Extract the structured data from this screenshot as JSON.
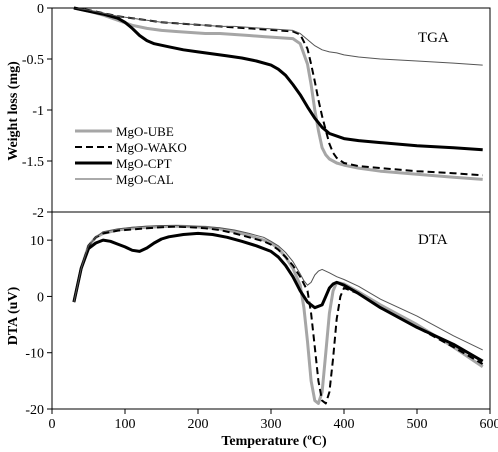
{
  "chart_data": [
    {
      "type": "line",
      "panel_label": "TGA",
      "xlabel": "",
      "ylabel": "Weight loss (mg)",
      "xlim": [
        0,
        600
      ],
      "ylim": [
        -2,
        0
      ],
      "yticks": [
        0,
        -0.5,
        -1,
        -1.5,
        -2
      ],
      "ytick_labels": [
        "0",
        "-0.5",
        "-1",
        "-1.5",
        "-2"
      ],
      "grid": false,
      "legend": "center-left",
      "series": [
        {
          "name": "MgO-UBE",
          "color": "#a6a6a6",
          "width": 3,
          "dash": "",
          "x": [
            30,
            50,
            70,
            90,
            110,
            130,
            150,
            170,
            190,
            210,
            230,
            250,
            270,
            290,
            310,
            330,
            340,
            350,
            355,
            360,
            365,
            370,
            375,
            380,
            390,
            400,
            420,
            450,
            500,
            550,
            590
          ],
          "y": [
            0,
            -0.03,
            -0.07,
            -0.12,
            -0.17,
            -0.2,
            -0.22,
            -0.23,
            -0.24,
            -0.25,
            -0.25,
            -0.26,
            -0.27,
            -0.28,
            -0.29,
            -0.3,
            -0.35,
            -0.55,
            -0.75,
            -1.0,
            -1.2,
            -1.37,
            -1.44,
            -1.48,
            -1.52,
            -1.54,
            -1.57,
            -1.6,
            -1.63,
            -1.66,
            -1.68
          ]
        },
        {
          "name": "MgO-WAKO",
          "color": "#000000",
          "width": 2,
          "dash": "7,4",
          "x": [
            30,
            50,
            70,
            90,
            110,
            130,
            150,
            170,
            190,
            210,
            230,
            250,
            270,
            290,
            310,
            330,
            340,
            350,
            355,
            360,
            365,
            370,
            375,
            380,
            385,
            390,
            400,
            420,
            450,
            500,
            550,
            590
          ],
          "y": [
            0,
            -0.02,
            -0.05,
            -0.08,
            -0.1,
            -0.12,
            -0.14,
            -0.15,
            -0.16,
            -0.17,
            -0.18,
            -0.19,
            -0.2,
            -0.21,
            -0.22,
            -0.23,
            -0.26,
            -0.4,
            -0.55,
            -0.72,
            -0.9,
            -1.06,
            -1.2,
            -1.33,
            -1.42,
            -1.47,
            -1.52,
            -1.55,
            -1.57,
            -1.6,
            -1.62,
            -1.64
          ]
        },
        {
          "name": "MgO-CPT",
          "color": "#000000",
          "width": 3,
          "dash": "",
          "x": [
            30,
            50,
            70,
            90,
            100,
            110,
            120,
            130,
            140,
            160,
            180,
            200,
            220,
            240,
            260,
            280,
            300,
            310,
            320,
            330,
            340,
            350,
            360,
            370,
            380,
            400,
            420,
            450,
            500,
            550,
            590
          ],
          "y": [
            0,
            -0.03,
            -0.06,
            -0.1,
            -0.14,
            -0.2,
            -0.27,
            -0.32,
            -0.35,
            -0.38,
            -0.41,
            -0.43,
            -0.45,
            -0.47,
            -0.49,
            -0.52,
            -0.56,
            -0.6,
            -0.66,
            -0.75,
            -0.85,
            -0.97,
            -1.08,
            -1.17,
            -1.23,
            -1.28,
            -1.3,
            -1.32,
            -1.35,
            -1.37,
            -1.39
          ]
        },
        {
          "name": "MgO-CAL",
          "color": "#555555",
          "width": 1,
          "dash": "",
          "x": [
            30,
            50,
            70,
            90,
            110,
            130,
            150,
            170,
            190,
            210,
            230,
            250,
            270,
            290,
            310,
            330,
            340,
            350,
            360,
            370,
            380,
            390,
            400,
            420,
            450,
            500,
            550,
            590
          ],
          "y": [
            0,
            -0.02,
            -0.05,
            -0.08,
            -0.1,
            -0.12,
            -0.14,
            -0.15,
            -0.16,
            -0.17,
            -0.18,
            -0.18,
            -0.19,
            -0.2,
            -0.21,
            -0.22,
            -0.25,
            -0.31,
            -0.37,
            -0.41,
            -0.43,
            -0.44,
            -0.46,
            -0.48,
            -0.5,
            -0.52,
            -0.54,
            -0.56
          ]
        }
      ]
    },
    {
      "type": "line",
      "panel_label": "DTA",
      "xlabel": "Temperature (ºC)",
      "ylabel": "DTA (uV)",
      "xlim": [
        0,
        600
      ],
      "ylim": [
        -20,
        15
      ],
      "xticks": [
        0,
        100,
        200,
        300,
        400,
        500,
        600
      ],
      "xtick_labels": [
        "0",
        "100",
        "200",
        "300",
        "400",
        "500",
        "600"
      ],
      "yticks": [
        10,
        0,
        -10,
        -20
      ],
      "ytick_labels": [
        "10",
        "0",
        "-10",
        "-20"
      ],
      "grid": false,
      "series": [
        {
          "name": "MgO-UBE",
          "color": "#a6a6a6",
          "width": 3,
          "dash": "",
          "x": [
            30,
            40,
            50,
            60,
            70,
            90,
            110,
            130,
            150,
            170,
            190,
            210,
            230,
            250,
            270,
            290,
            300,
            310,
            320,
            330,
            340,
            345,
            350,
            355,
            360,
            365,
            370,
            375,
            380,
            385,
            390,
            400,
            420,
            450,
            500,
            550,
            590
          ],
          "y": [
            -1,
            5,
            9,
            10.5,
            11.2,
            11.8,
            12.1,
            12.3,
            12.4,
            12.5,
            12.4,
            12.3,
            12,
            11.5,
            10.8,
            10,
            9.5,
            8.5,
            7,
            5,
            2,
            -2,
            -8,
            -15,
            -18.5,
            -19,
            -17,
            -10,
            -3,
            1,
            2.5,
            2.2,
            0.8,
            -1.5,
            -5,
            -9,
            -12.5
          ]
        },
        {
          "name": "MgO-WAKO",
          "color": "#000000",
          "width": 2,
          "dash": "7,4",
          "x": [
            30,
            40,
            50,
            60,
            70,
            90,
            110,
            130,
            150,
            170,
            190,
            210,
            230,
            250,
            270,
            290,
            300,
            310,
            320,
            330,
            340,
            350,
            355,
            360,
            365,
            370,
            375,
            380,
            385,
            390,
            395,
            400,
            420,
            450,
            500,
            550,
            590
          ],
          "y": [
            -1,
            5,
            9,
            10.5,
            11.2,
            11.7,
            11.9,
            12.1,
            12.3,
            12.4,
            12.3,
            12.1,
            11.8,
            11.2,
            10.5,
            9.8,
            9.2,
            8.3,
            7,
            5.5,
            3.5,
            1,
            -3,
            -9,
            -15,
            -18.5,
            -19,
            -17,
            -11,
            -4,
            0,
            1.5,
            0.5,
            -2,
            -5.5,
            -9,
            -12
          ]
        },
        {
          "name": "MgO-CPT",
          "color": "#000000",
          "width": 3,
          "dash": "",
          "x": [
            30,
            40,
            50,
            60,
            70,
            80,
            90,
            100,
            110,
            120,
            130,
            140,
            150,
            160,
            180,
            200,
            220,
            240,
            260,
            280,
            300,
            310,
            320,
            330,
            340,
            350,
            360,
            370,
            375,
            380,
            385,
            390,
            400,
            420,
            450,
            500,
            550,
            590
          ],
          "y": [
            -1,
            5,
            8.5,
            9.5,
            10,
            9.8,
            9.3,
            8.8,
            8.2,
            8,
            8.6,
            9.5,
            10.2,
            10.6,
            11,
            11.2,
            11,
            10.5,
            9.8,
            9,
            8,
            7,
            5.5,
            3.5,
            1,
            -1,
            -2,
            -1.5,
            0,
            1.5,
            2.2,
            2.5,
            2,
            0.5,
            -2,
            -5.5,
            -8.5,
            -11.5
          ]
        },
        {
          "name": "MgO-CAL",
          "color": "#555555",
          "width": 1,
          "dash": "",
          "x": [
            30,
            40,
            50,
            60,
            70,
            90,
            110,
            130,
            150,
            170,
            190,
            210,
            230,
            250,
            270,
            290,
            300,
            310,
            320,
            330,
            340,
            345,
            350,
            355,
            360,
            365,
            370,
            380,
            390,
            400,
            420,
            450,
            500,
            550,
            590
          ],
          "y": [
            -1,
            5,
            9,
            10.5,
            11.5,
            12,
            12.3,
            12.5,
            12.6,
            12.6,
            12.5,
            12.4,
            12.2,
            11.8,
            11.2,
            10.5,
            9.8,
            9,
            7.8,
            6.2,
            4,
            2.8,
            2,
            2.5,
            3.8,
            4.5,
            4.8,
            4.2,
            3.5,
            3,
            1.8,
            -0.5,
            -3.5,
            -7,
            -9.5
          ]
        }
      ]
    }
  ]
}
